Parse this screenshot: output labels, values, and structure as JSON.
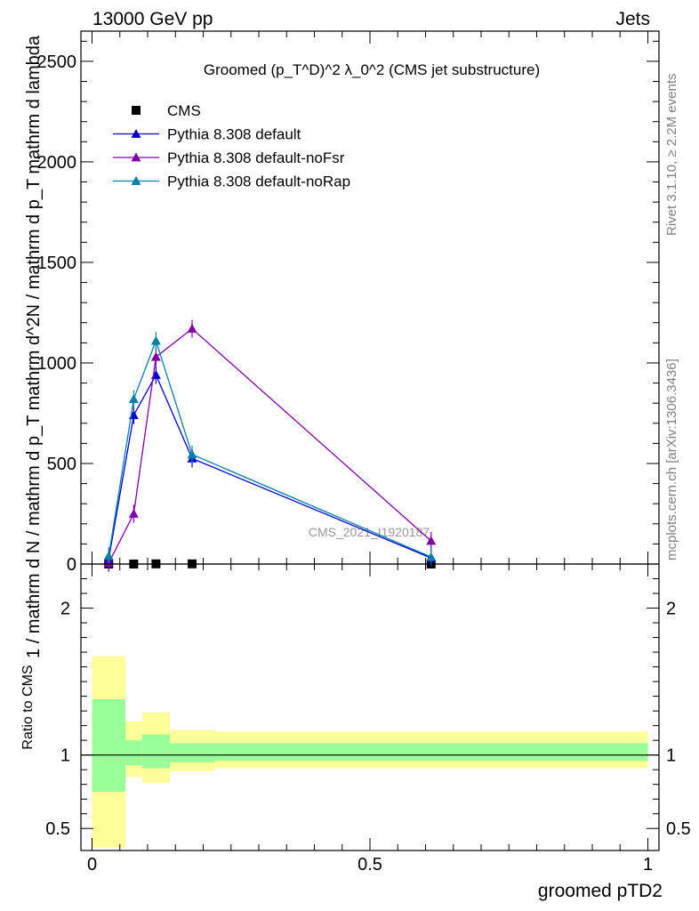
{
  "header": {
    "left": "13000 GeV pp",
    "right": "Jets"
  },
  "side_labels": {
    "rivet": "Rivet 3.1.10, ≥ 2.2M events",
    "mcplots": "mcplots.cern.ch [arXiv:1306.3436]"
  },
  "watermark": "CMS_2021_I1920187",
  "colors": {
    "cms": "#000000",
    "default": "#0000cc",
    "noFsr": "#8000a8",
    "noRap": "#0080a8",
    "band_inner": "#99ff99",
    "band_outer": "#ffff99"
  },
  "chart_data": [
    {
      "type": "line",
      "title": "Groomed (p_T^D)^2 λ_0^2 (CMS jet substructure)",
      "ylabel": "1 / mathrm d N / mathrm d p_T mathrm d^2N / mathrm d p_T mathrm d lambda",
      "xlim": [
        -0.02,
        1.02
      ],
      "ylim": [
        0,
        2650
      ],
      "yticks": [
        0,
        500,
        1000,
        1500,
        2000,
        2500
      ],
      "ytick_labels": [
        "0",
        "500",
        "1000",
        "1500",
        "2000",
        "2500"
      ],
      "grid": false,
      "legend_position": "top-left",
      "series": [
        {
          "name": "CMS",
          "marker": "square",
          "x": [
            0.03,
            0.075,
            0.115,
            0.18,
            0.61
          ],
          "y": [
            0,
            0,
            1,
            1,
            0
          ]
        },
        {
          "name": "Pythia 8.308 default",
          "marker": "triangle",
          "x": [
            0.03,
            0.075,
            0.115,
            0.18,
            0.61
          ],
          "y": [
            25,
            740,
            940,
            525,
            30
          ]
        },
        {
          "name": "Pythia 8.308 default-noFsr",
          "marker": "triangle",
          "x": [
            0.03,
            0.075,
            0.115,
            0.18,
            0.61
          ],
          "y": [
            5,
            250,
            1030,
            1170,
            115
          ]
        },
        {
          "name": "Pythia 8.308 default-noRap",
          "marker": "triangle",
          "x": [
            0.03,
            0.075,
            0.115,
            0.18,
            0.61
          ],
          "y": [
            40,
            820,
            1110,
            545,
            35
          ]
        }
      ]
    },
    {
      "type": "area",
      "ylabel": "Ratio to CMS",
      "xlabel": "groomed pTD2",
      "xlim": [
        -0.02,
        1.02
      ],
      "ylim": [
        0.35,
        2.3
      ],
      "yticks": [
        0.5,
        1,
        2
      ],
      "ytick_labels": [
        "0.5",
        "1",
        "2"
      ],
      "xticks": [
        0,
        0.5,
        1
      ],
      "xtick_labels": [
        "0",
        "0.5",
        "1"
      ],
      "grid": false,
      "bins": [
        {
          "x0": 0.0,
          "x1": 0.06,
          "inner": [
            0.75,
            1.38
          ],
          "outer": [
            0.37,
            1.67
          ]
        },
        {
          "x0": 0.06,
          "x1": 0.09,
          "inner": [
            0.93,
            1.1
          ],
          "outer": [
            0.85,
            1.23
          ]
        },
        {
          "x0": 0.09,
          "x1": 0.14,
          "inner": [
            0.91,
            1.14
          ],
          "outer": [
            0.81,
            1.29
          ]
        },
        {
          "x0": 0.14,
          "x1": 0.22,
          "inner": [
            0.95,
            1.08
          ],
          "outer": [
            0.89,
            1.17
          ]
        },
        {
          "x0": 0.22,
          "x1": 1.0,
          "inner": [
            0.96,
            1.08
          ],
          "outer": [
            0.91,
            1.16
          ]
        }
      ]
    }
  ]
}
